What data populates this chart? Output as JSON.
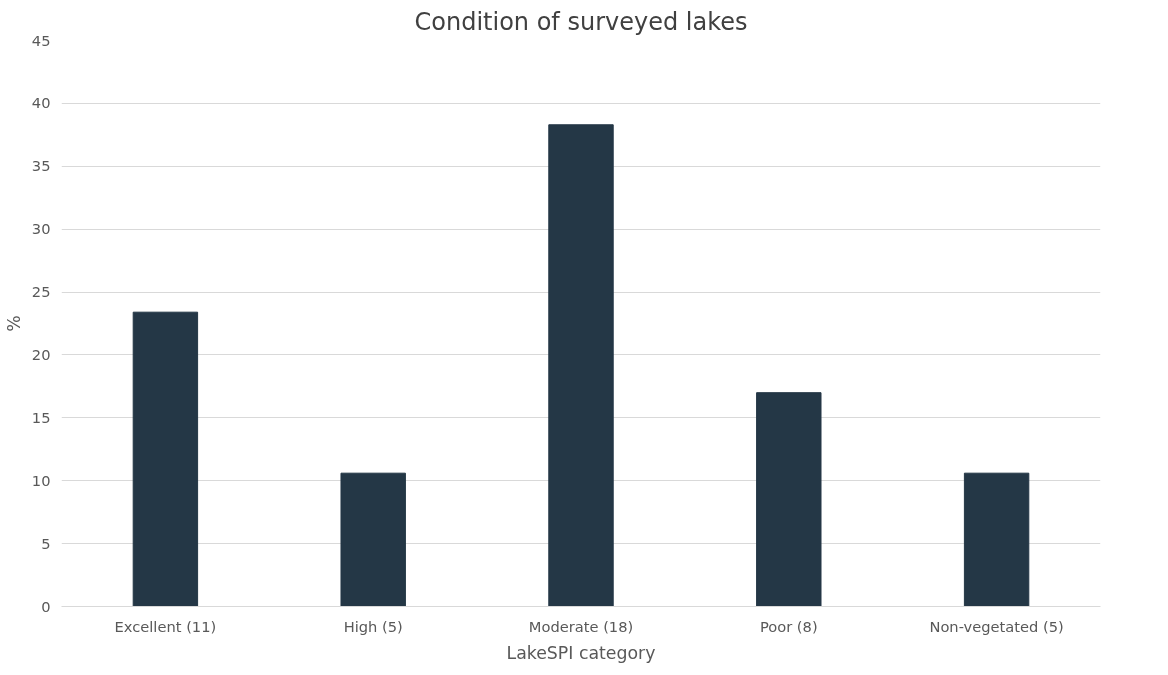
{
  "chart_data": {
    "type": "bar",
    "title": "Condition of surveyed lakes",
    "xlabel": "LakeSPI category",
    "ylabel": "%",
    "categories": [
      "Excellent (11)",
      "High (5)",
      "Moderate (18)",
      "Poor (8)",
      "Non-vegetated (5)"
    ],
    "values": [
      23.4,
      10.6,
      38.3,
      17.0,
      10.6
    ],
    "color": "#243746",
    "ylim": [
      0,
      45
    ],
    "yticks": [
      0,
      5,
      10,
      15,
      20,
      25,
      30,
      35,
      40,
      45
    ],
    "grid": "y"
  }
}
